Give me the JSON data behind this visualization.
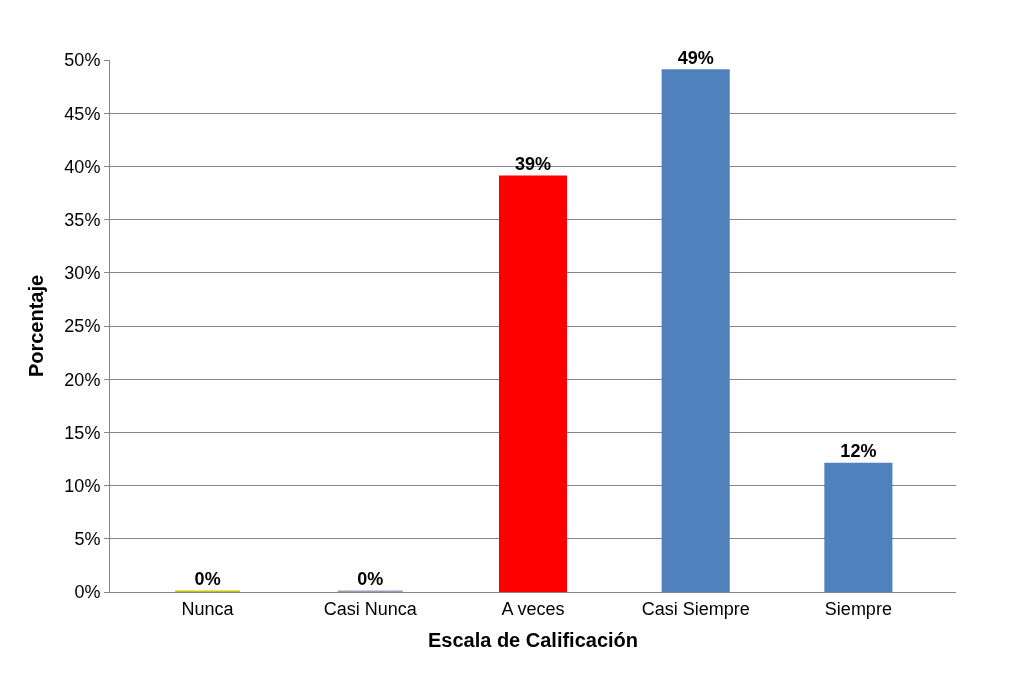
{
  "chart_data": {
    "type": "bar",
    "xlabel": "Escala de Calificación",
    "ylabel": "Porcentaje",
    "categories": [
      "Nunca",
      "Casi Nunca",
      "A veces",
      "Casi Siempre",
      "Siempre"
    ],
    "values": [
      0,
      0,
      39,
      49,
      12
    ],
    "colors": [
      "#c8c400",
      "#a499b0",
      "#ff0000",
      "#4f81bd",
      "#4f81bd"
    ],
    "value_labels": [
      "0%",
      "0%",
      "39%",
      "49%",
      "12%"
    ],
    "ylim": [
      0,
      50
    ],
    "yticks": [
      {
        "value": 0,
        "label": "0%"
      },
      {
        "value": 5,
        "label": "5%"
      },
      {
        "value": 10,
        "label": "10%"
      },
      {
        "value": 15,
        "label": "15%"
      },
      {
        "value": 20,
        "label": "20%"
      },
      {
        "value": 25,
        "label": "25%"
      },
      {
        "value": 30,
        "label": "30%"
      },
      {
        "value": 35,
        "label": "35%"
      },
      {
        "value": 40,
        "label": "40%"
      },
      {
        "value": 45,
        "label": "45%"
      },
      {
        "value": 50,
        "label": "50%"
      }
    ],
    "grid": "y"
  }
}
